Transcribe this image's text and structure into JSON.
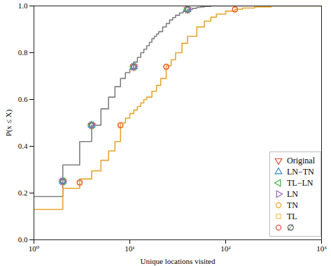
{
  "chart_data": {
    "type": "line",
    "x_label": "Unique locations visited",
    "y_label": "P(x ≤ X)",
    "log": "x",
    "grid": false,
    "legend": "lower right",
    "xlim": [
      1,
      1000
    ],
    "xticks": [
      {
        "value": 1,
        "label": "10⁰"
      },
      {
        "value": 10,
        "label": "10¹"
      },
      {
        "value": 100,
        "label": "10²"
      },
      {
        "value": 1000,
        "label": "10³"
      }
    ],
    "ylim": [
      0,
      1
    ],
    "yticks": [
      {
        "value": 0,
        "label": "0.0"
      },
      {
        "value": 0.2,
        "label": "0.2"
      },
      {
        "value": 0.4,
        "label": "0.4"
      },
      {
        "value": 0.6,
        "label": "0.6"
      },
      {
        "value": 0.8,
        "label": "0.8"
      },
      {
        "value": 1,
        "label": "1.0"
      }
    ],
    "lines": [
      {
        "color": "#808080",
        "line_style": "step",
        "x": [
          1,
          2,
          3,
          4,
          5,
          6,
          7,
          8,
          9,
          10,
          11,
          12,
          13,
          14,
          15,
          16,
          17,
          18,
          19,
          20,
          22,
          24,
          26,
          28,
          30,
          33,
          36,
          40,
          45,
          50,
          55,
          60,
          70,
          1000
        ],
        "values": [
          0.185,
          0.32,
          0.42,
          0.49,
          0.56,
          0.61,
          0.655,
          0.69,
          0.715,
          0.73,
          0.76,
          0.78,
          0.8,
          0.815,
          0.83,
          0.845,
          0.86,
          0.87,
          0.88,
          0.89,
          0.91,
          0.925,
          0.94,
          0.95,
          0.96,
          0.97,
          0.978,
          0.985,
          0.99,
          0.994,
          0.996,
          0.998,
          1.0,
          1.0
        ]
      },
      {
        "color": "#e5a531",
        "line_style": "step",
        "x": [
          1,
          2,
          3,
          4,
          5,
          6,
          7,
          8,
          9,
          10,
          11,
          12,
          13,
          14,
          15,
          17,
          19,
          21,
          24,
          27,
          30,
          35,
          40,
          50,
          60,
          70,
          80,
          100,
          125,
          150,
          200,
          300,
          1000
        ],
        "values": [
          0.13,
          0.22,
          0.26,
          0.295,
          0.34,
          0.38,
          0.42,
          0.5,
          0.52,
          0.54,
          0.555,
          0.57,
          0.585,
          0.6,
          0.61,
          0.635,
          0.66,
          0.69,
          0.745,
          0.77,
          0.8,
          0.84,
          0.87,
          0.91,
          0.935,
          0.952,
          0.965,
          0.978,
          0.986,
          0.991,
          0.996,
          1.0,
          1.0
        ]
      }
    ],
    "series": [
      {
        "name": "Original",
        "color": "#e24a33",
        "marker": "triangle-down",
        "type": "scatter",
        "x": [
          2,
          4,
          11,
          40
        ],
        "values": [
          0.25,
          0.49,
          0.74,
          0.985
        ]
      },
      {
        "name": "LN−TN",
        "color": "#348abd",
        "marker": "triangle-up",
        "type": "scatter",
        "x": [
          2,
          4,
          11,
          40
        ],
        "values": [
          0.25,
          0.49,
          0.74,
          0.985
        ]
      },
      {
        "name": "TL−LN",
        "color": "#3cb043",
        "marker": "triangle-left",
        "type": "scatter",
        "x": [
          2,
          4,
          11,
          40
        ],
        "values": [
          0.25,
          0.49,
          0.74,
          0.985
        ]
      },
      {
        "name": "LN",
        "color": "#9467bd",
        "marker": "triangle-right",
        "type": "scatter",
        "x": [
          2,
          4,
          11,
          40
        ],
        "values": [
          0.25,
          0.49,
          0.74,
          0.985
        ]
      },
      {
        "name": "TN",
        "color": "#f0a020",
        "marker": "circle",
        "type": "scatter",
        "x": [
          3,
          8,
          24,
          125
        ],
        "values": [
          0.245,
          0.49,
          0.74,
          0.985
        ]
      },
      {
        "name": "TL",
        "color": "#fbc15e",
        "marker": "square",
        "type": "scatter",
        "x": [
          3,
          8,
          24,
          125
        ],
        "values": [
          0.245,
          0.49,
          0.74,
          0.985
        ]
      },
      {
        "name": "∅",
        "color": "#e24a33",
        "marker": "circle",
        "type": "scatter",
        "x": [
          3,
          8,
          24,
          125
        ],
        "values": [
          0.245,
          0.49,
          0.74,
          0.985
        ]
      }
    ]
  }
}
